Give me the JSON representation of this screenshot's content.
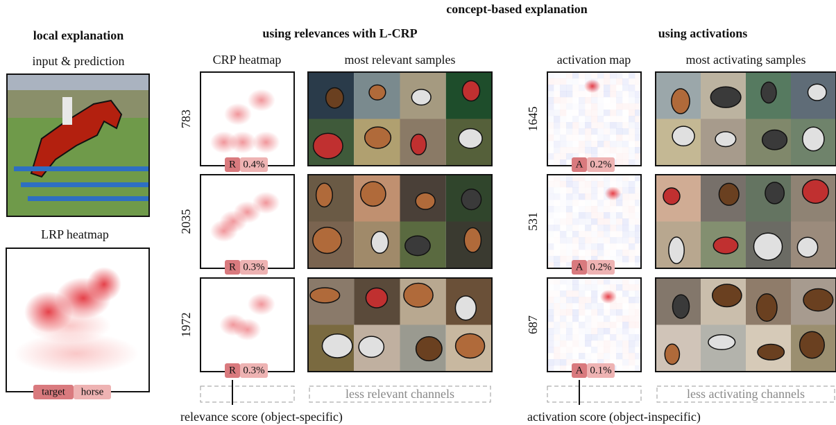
{
  "header": {
    "title": "concept-based explanation"
  },
  "local": {
    "title": "local explanation",
    "input_label": "input & prediction",
    "heatmap_label": "LRP heatmap",
    "badge": {
      "key": "target",
      "value": "horse"
    }
  },
  "relevance": {
    "title": "using relevances with L-CRP",
    "heatmap_header": "CRP heatmap",
    "samples_header": "most relevant samples",
    "rows": [
      {
        "channel": "783",
        "score_key": "R",
        "score": "0.4%"
      },
      {
        "channel": "2035",
        "score_key": "R",
        "score": "0.3%"
      },
      {
        "channel": "1972",
        "score_key": "R",
        "score": "0.3%"
      }
    ],
    "more": "less relevant channels",
    "caption": "relevance score (object-specific)"
  },
  "activation": {
    "title": "using activations",
    "heatmap_header": "activation map",
    "samples_header": "most activating samples",
    "rows": [
      {
        "channel": "1645",
        "score_key": "A",
        "score": "0.2%"
      },
      {
        "channel": "531",
        "score_key": "A",
        "score": "0.2%"
      },
      {
        "channel": "687",
        "score_key": "A",
        "score": "0.1%"
      }
    ],
    "more": "less activating channels",
    "caption": "activation score (object-inspecific)"
  }
}
